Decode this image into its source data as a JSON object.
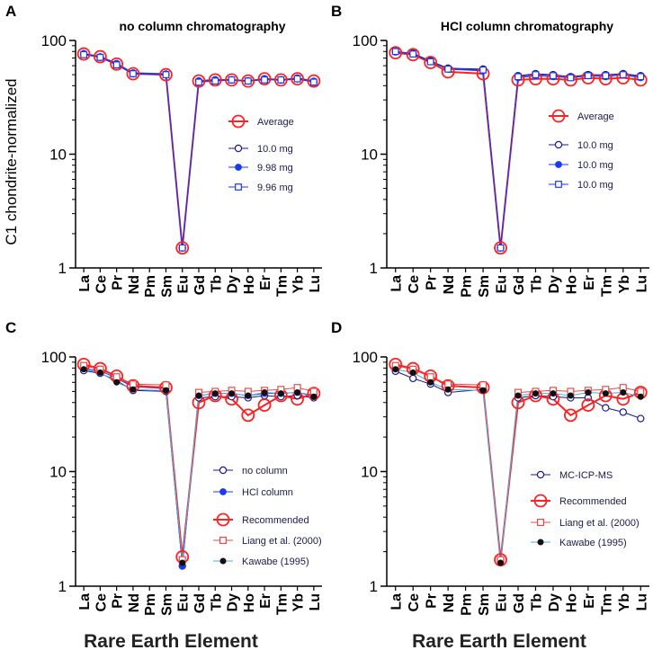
{
  "y_axis_label": "C1 chondrite-normalized",
  "x_axis_label_left": "Rare Earth Element",
  "x_axis_label_right": "Rare Earth Element",
  "elements": [
    "La",
    "Ce",
    "Pr",
    "Nd",
    "Pm",
    "Sm",
    "Eu",
    "Gd",
    "Tb",
    "Dy",
    "Ho",
    "Er",
    "Tm",
    "Yb",
    "Lu"
  ],
  "chart_data": [
    {
      "panel": "A",
      "type": "line",
      "title": "no column chromatography",
      "yscale": "log",
      "ylim": [
        1,
        100
      ],
      "yticks": [
        "1",
        "10",
        "100"
      ],
      "categories": [
        "La",
        "Ce",
        "Pr",
        "Nd",
        "Pm",
        "Sm",
        "Eu",
        "Gd",
        "Tb",
        "Dy",
        "Ho",
        "Er",
        "Tm",
        "Yb",
        "Lu"
      ],
      "series": [
        {
          "name": "Average",
          "color": "#ff2020",
          "marker": "bigcircle",
          "width": 2,
          "values": [
            76,
            72,
            62,
            51,
            null,
            50,
            1.5,
            44,
            45,
            45,
            44,
            46,
            45,
            46,
            44
          ]
        },
        {
          "name": "10.0 mg",
          "color": "#1a1a8a",
          "marker": "open",
          "width": 1,
          "values": [
            76,
            71,
            61,
            51,
            null,
            50,
            1.5,
            44,
            45,
            45,
            44,
            46,
            45,
            46,
            43
          ]
        },
        {
          "name": "9.98 mg",
          "color": "#1a3aee",
          "marker": "filled",
          "width": 1,
          "values": [
            77,
            72,
            63,
            52,
            null,
            51,
            1.5,
            44,
            45,
            45,
            44,
            46,
            45,
            47,
            44
          ]
        },
        {
          "name": "9.96 mg",
          "color": "#1a3aee",
          "marker": "square",
          "width": 1,
          "values": [
            75,
            71,
            61,
            51,
            null,
            50,
            1.5,
            43,
            44,
            45,
            44,
            45,
            45,
            46,
            43
          ]
        }
      ]
    },
    {
      "panel": "B",
      "type": "line",
      "title": "HCl column chromatography",
      "yscale": "log",
      "ylim": [
        1,
        100
      ],
      "yticks": [
        "1",
        "10",
        "100"
      ],
      "categories": [
        "La",
        "Ce",
        "Pr",
        "Nd",
        "Pm",
        "Sm",
        "Eu",
        "Gd",
        "Tb",
        "Dy",
        "Ho",
        "Er",
        "Tm",
        "Yb",
        "Lu"
      ],
      "series": [
        {
          "name": "Average",
          "color": "#ff2020",
          "marker": "bigcircle",
          "width": 2,
          "values": [
            78,
            75,
            64,
            53,
            null,
            51,
            1.5,
            45,
            46,
            46,
            45,
            47,
            46,
            47,
            45
          ]
        },
        {
          "name": "10.0 mg",
          "color": "#1a1a8a",
          "marker": "open",
          "width": 1,
          "values": [
            80,
            77,
            66,
            57,
            null,
            56,
            1.5,
            49,
            51,
            50,
            48,
            50,
            50,
            51,
            49
          ]
        },
        {
          "name": "10.0 mg",
          "color": "#1a3aee",
          "marker": "filled",
          "width": 1,
          "values": [
            79,
            76,
            65,
            56,
            null,
            54,
            1.5,
            47,
            49,
            48,
            47,
            49,
            48,
            50,
            47
          ]
        },
        {
          "name": "10.0 mg",
          "color": "#1a3aee",
          "marker": "square",
          "width": 1,
          "values": [
            80,
            76,
            65,
            56,
            null,
            55,
            1.5,
            48,
            50,
            49,
            47,
            49,
            49,
            50,
            48
          ]
        }
      ]
    },
    {
      "panel": "C",
      "type": "line",
      "title": "",
      "yscale": "log",
      "ylim": [
        1,
        100
      ],
      "yticks": [
        "1",
        "10",
        "100"
      ],
      "categories": [
        "La",
        "Ce",
        "Pr",
        "Nd",
        "Pm",
        "Sm",
        "Eu",
        "Gd",
        "Tb",
        "Dy",
        "Ho",
        "Er",
        "Tm",
        "Yb",
        "Lu"
      ],
      "series": [
        {
          "name": "no column",
          "color": "#1a1a8a",
          "marker": "open",
          "width": 1,
          "values": [
            76,
            72,
            62,
            51,
            null,
            50,
            1.5,
            44,
            45,
            45,
            44,
            46,
            45,
            46,
            44
          ]
        },
        {
          "name": "HCl column",
          "color": "#1a3aee",
          "marker": "filled",
          "width": 1,
          "values": [
            79,
            76,
            65,
            55,
            null,
            53,
            1.5,
            46,
            48,
            48,
            46,
            48,
            48,
            49,
            46
          ]
        },
        {
          "name": "Recommended",
          "color": "#ff2020",
          "marker": "bigcircle",
          "width": 2,
          "values": [
            86,
            79,
            68,
            56,
            null,
            54,
            1.8,
            40,
            46,
            43,
            31,
            38,
            46,
            43,
            48
          ]
        },
        {
          "name": "Liang et al. (2000)",
          "color": "#e84a4a",
          "marker": "redsquare",
          "width": 1,
          "values": [
            84,
            78,
            67,
            58,
            null,
            57,
            1.7,
            49,
            50,
            51,
            50,
            51,
            52,
            54,
            50
          ]
        },
        {
          "name": "Kawabe (1995)",
          "color": "#40b0e8",
          "marker": "black",
          "width": 1,
          "values": [
            78,
            73,
            60,
            52,
            null,
            51,
            1.6,
            46,
            48,
            48,
            46,
            49,
            48,
            49,
            45
          ]
        }
      ]
    },
    {
      "panel": "D",
      "type": "line",
      "title": "",
      "yscale": "log",
      "ylim": [
        1,
        100
      ],
      "yticks": [
        "1",
        "10",
        "100"
      ],
      "categories": [
        "La",
        "Ce",
        "Pr",
        "Nd",
        "Pm",
        "Sm",
        "Eu",
        "Gd",
        "Tb",
        "Dy",
        "Ho",
        "Er",
        "Tm",
        "Yb",
        "Lu"
      ],
      "series": [
        {
          "name": "MC-ICP-MS",
          "color": "#1a1a8a",
          "marker": "open",
          "width": 1,
          "values": [
            75,
            65,
            58,
            49,
            null,
            52,
            1.7,
            44,
            46,
            45,
            44,
            44,
            36,
            33,
            29
          ]
        },
        {
          "name": "Recommended",
          "color": "#ff2020",
          "marker": "bigcircle",
          "width": 2,
          "values": [
            86,
            79,
            68,
            56,
            null,
            54,
            1.7,
            40,
            46,
            43,
            31,
            38,
            46,
            43,
            49
          ]
        },
        {
          "name": "Liang et al. (2000)",
          "color": "#e84a4a",
          "marker": "redsquare",
          "width": 1,
          "values": [
            84,
            78,
            67,
            58,
            null,
            57,
            1.7,
            49,
            50,
            51,
            50,
            51,
            52,
            54,
            50
          ]
        },
        {
          "name": "Kawabe (1995)",
          "color": "#40b0e8",
          "marker": "black",
          "width": 1,
          "values": [
            78,
            73,
            60,
            52,
            null,
            51,
            1.6,
            46,
            48,
            48,
            46,
            49,
            48,
            49,
            45
          ]
        }
      ]
    }
  ]
}
